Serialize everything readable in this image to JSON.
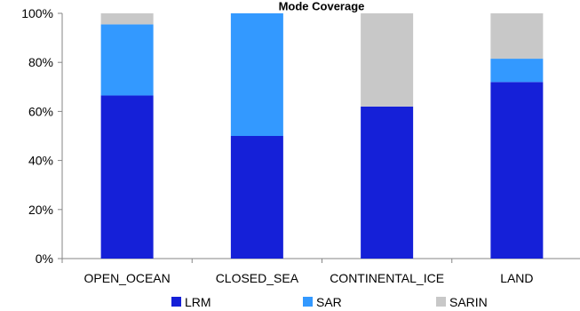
{
  "chart_data": {
    "type": "bar",
    "stacked": true,
    "title": "Mode Coverage",
    "categories": [
      "OPEN_OCEAN",
      "CLOSED_SEA",
      "CONTINENTAL_ICE",
      "LAND"
    ],
    "series": [
      {
        "name": "LRM",
        "color": "#1520D8",
        "values": [
          66.5,
          50,
          62,
          72
        ]
      },
      {
        "name": "SAR",
        "color": "#3399FF",
        "values": [
          29,
          50,
          0,
          9.5
        ]
      },
      {
        "name": "SARIN",
        "color": "#C8C8C8",
        "values": [
          4.5,
          0,
          38,
          18.5
        ]
      }
    ],
    "y_ticks": [
      "0%",
      "20%",
      "40%",
      "60%",
      "80%",
      "100%"
    ],
    "ylim": [
      0,
      100
    ],
    "grid": false,
    "legend_position": "bottom"
  }
}
